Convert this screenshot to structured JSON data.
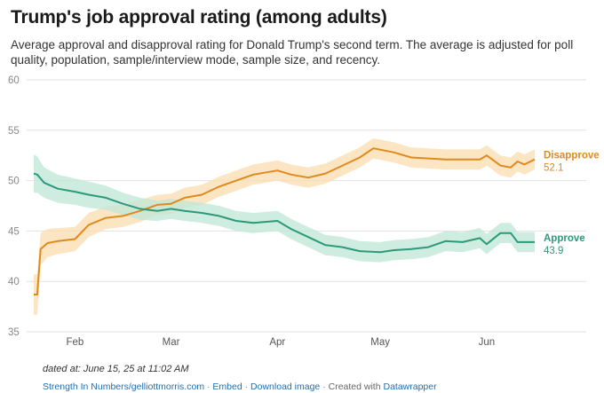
{
  "header": {
    "title": "Trump's job approval rating (among adults)",
    "subtitle": "Average approval and disapproval rating for Donald Trump's second term. The average is adjusted for poll quality, population, sample/interview mode, sample size, and recency."
  },
  "footer": {
    "notes": "dated at: June 15, 25 at 11:02 AM",
    "source_link": "Strength In Numbers/gelliottmorris.com",
    "embed_link": "Embed",
    "download_link": "Download image",
    "credit": "Created with",
    "credit_link": "Datawrapper",
    "separator": "·"
  },
  "colors": {
    "disapprove": "#e08a1e",
    "disapprove_band": "#fbdcae",
    "approve": "#2a9a7b",
    "approve_band": "#bfe6d7",
    "grid": "#e2e2e2"
  },
  "chart_data": {
    "type": "line",
    "title": "Trump's job approval rating (among adults)",
    "xlabel": "",
    "ylabel": "",
    "ylim": [
      35,
      60
    ],
    "xlim": [
      "2025-01-20",
      "2025-06-15"
    ],
    "y_ticks": [
      35,
      40,
      45,
      50,
      55,
      60
    ],
    "x_ticks": [
      {
        "label": "Feb",
        "date": "2025-02-01"
      },
      {
        "label": "Mar",
        "date": "2025-03-01"
      },
      {
        "label": "Apr",
        "date": "2025-04-01"
      },
      {
        "label": "May",
        "date": "2025-05-01"
      },
      {
        "label": "Jun",
        "date": "2025-06-01"
      }
    ],
    "grid": "horizontal",
    "legend": "end-labels",
    "series": [
      {
        "name": "Disapprove",
        "end_label": "52.1",
        "x": [
          "2025-01-20",
          "2025-01-21",
          "2025-01-22",
          "2025-01-24",
          "2025-01-27",
          "2025-02-01",
          "2025-02-05",
          "2025-02-10",
          "2025-02-15",
          "2025-02-20",
          "2025-02-25",
          "2025-03-01",
          "2025-03-05",
          "2025-03-10",
          "2025-03-15",
          "2025-03-20",
          "2025-03-25",
          "2025-04-01",
          "2025-04-05",
          "2025-04-10",
          "2025-04-15",
          "2025-04-20",
          "2025-04-25",
          "2025-04-29",
          "2025-05-05",
          "2025-05-10",
          "2025-05-15",
          "2025-05-20",
          "2025-05-25",
          "2025-05-30",
          "2025-06-01",
          "2025-06-05",
          "2025-06-08",
          "2025-06-10",
          "2025-06-12",
          "2025-06-15"
        ],
        "values": [
          38.7,
          38.7,
          43.2,
          43.8,
          44.0,
          44.2,
          45.6,
          46.3,
          46.5,
          47.0,
          47.6,
          47.7,
          48.3,
          48.6,
          49.4,
          50.0,
          50.6,
          51.0,
          50.6,
          50.3,
          50.7,
          51.5,
          52.3,
          53.2,
          52.8,
          52.3,
          52.2,
          52.1,
          52.1,
          52.1,
          52.5,
          51.5,
          51.3,
          51.9,
          51.6,
          52.1
        ],
        "band_halfwidth": [
          2.0,
          2.0,
          1.6,
          1.4,
          1.3,
          1.2,
          1.2,
          1.1,
          1.1,
          1.1,
          1.0,
          1.0,
          1.0,
          1.0,
          1.0,
          1.0,
          1.0,
          1.0,
          1.0,
          1.0,
          1.0,
          1.0,
          1.0,
          1.0,
          1.0,
          1.0,
          1.0,
          1.0,
          1.0,
          1.0,
          1.0,
          1.0,
          1.0,
          1.0,
          1.0,
          1.0
        ]
      },
      {
        "name": "Approve",
        "end_label": "43.9",
        "x": [
          "2025-01-20",
          "2025-01-21",
          "2025-01-23",
          "2025-01-27",
          "2025-02-01",
          "2025-02-05",
          "2025-02-10",
          "2025-02-15",
          "2025-02-20",
          "2025-02-25",
          "2025-03-01",
          "2025-03-05",
          "2025-03-10",
          "2025-03-15",
          "2025-03-20",
          "2025-03-25",
          "2025-04-01",
          "2025-04-05",
          "2025-04-10",
          "2025-04-15",
          "2025-04-20",
          "2025-04-25",
          "2025-05-01",
          "2025-05-05",
          "2025-05-10",
          "2025-05-15",
          "2025-05-20",
          "2025-05-25",
          "2025-05-30",
          "2025-06-01",
          "2025-06-05",
          "2025-06-08",
          "2025-06-10",
          "2025-06-12",
          "2025-06-15"
        ],
        "values": [
          50.7,
          50.6,
          49.8,
          49.2,
          48.9,
          48.6,
          48.3,
          47.7,
          47.2,
          47.0,
          47.2,
          47.0,
          46.8,
          46.5,
          46.0,
          45.8,
          46.0,
          45.2,
          44.4,
          43.6,
          43.4,
          43.0,
          42.9,
          43.1,
          43.2,
          43.4,
          44.0,
          43.9,
          44.3,
          43.7,
          44.8,
          44.8,
          43.9,
          43.9,
          43.9
        ],
        "band_halfwidth": [
          1.9,
          1.8,
          1.5,
          1.4,
          1.3,
          1.3,
          1.2,
          1.1,
          1.1,
          1.0,
          1.0,
          1.0,
          1.0,
          1.0,
          1.0,
          1.0,
          1.0,
          1.0,
          1.0,
          1.0,
          1.0,
          1.0,
          1.0,
          1.0,
          1.0,
          1.0,
          1.0,
          1.0,
          1.0,
          1.0,
          1.0,
          1.0,
          1.0,
          1.0,
          1.0
        ]
      }
    ]
  }
}
